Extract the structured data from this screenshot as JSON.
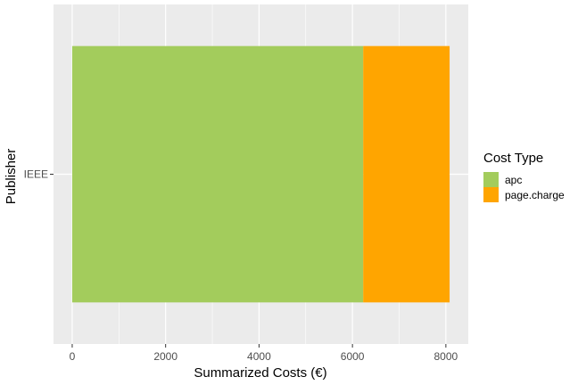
{
  "chart_data": {
    "type": "bar",
    "orientation": "horizontal",
    "stacked": true,
    "categories": [
      "IEEE"
    ],
    "series": [
      {
        "name": "apc",
        "values": [
          6230
        ],
        "color": "#A3CC5C"
      },
      {
        "name": "page.charge",
        "values": [
          1850
        ],
        "color": "#FFA500"
      }
    ],
    "xlabel": "Summarized Costs (€)",
    "ylabel": "Publisher",
    "xlim": [
      -400,
      8480
    ],
    "xticks": [
      0,
      2000,
      4000,
      6000,
      8000
    ],
    "xtick_labels": [
      "0",
      "2000",
      "4000",
      "6000",
      "8000"
    ],
    "legend": {
      "title": "Cost Type",
      "position": "right"
    },
    "grid": true,
    "panel_background": "#EBEBEB"
  }
}
